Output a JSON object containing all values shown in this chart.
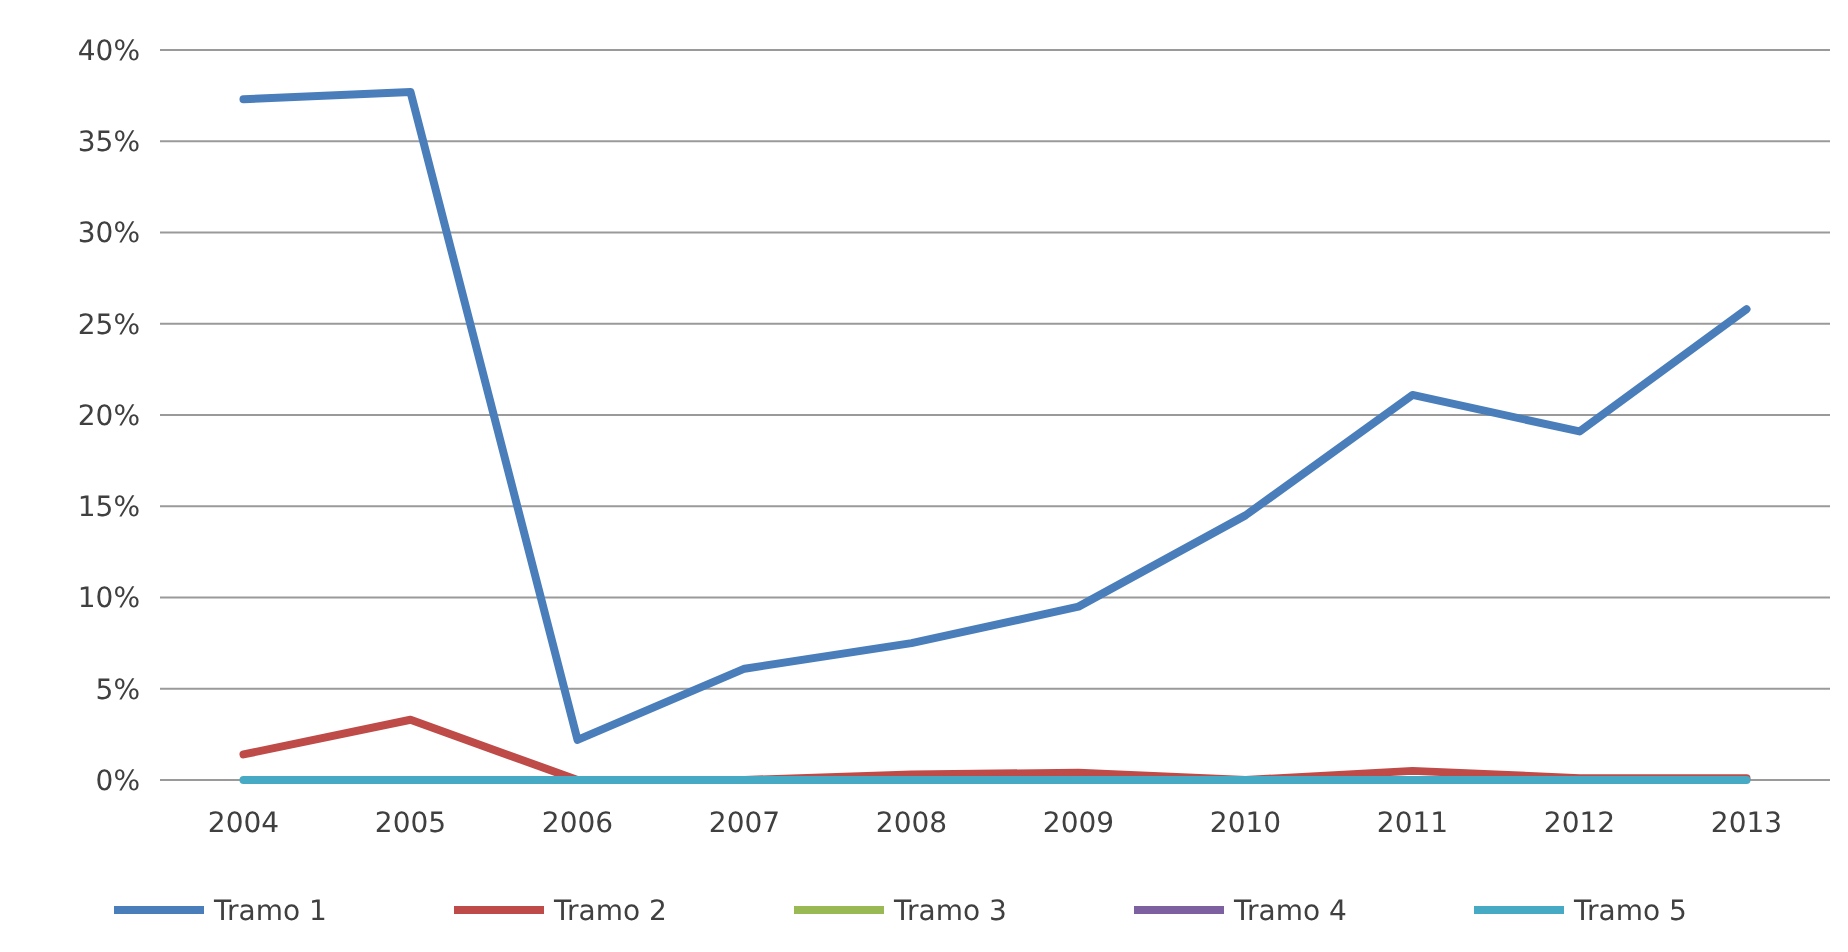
{
  "chart_data": {
    "type": "line",
    "categories": [
      "2004",
      "2005",
      "2006",
      "2007",
      "2008",
      "2009",
      "2010",
      "2011",
      "2012",
      "2013"
    ],
    "series": [
      {
        "name": "Tramo 1",
        "color": "#4a7ebb",
        "values": [
          37.3,
          37.7,
          2.2,
          6.1,
          7.5,
          9.5,
          14.5,
          21.1,
          19.1,
          25.8
        ]
      },
      {
        "name": "Tramo 2",
        "color": "#be4b48",
        "values": [
          1.4,
          3.3,
          0,
          0,
          0.3,
          0.4,
          0,
          0.5,
          0.1,
          0.1
        ]
      },
      {
        "name": "Tramo 3",
        "color": "#98b954",
        "values": [
          null,
          null,
          null,
          null,
          null,
          null,
          null,
          null,
          null,
          null
        ]
      },
      {
        "name": "Tramo 4",
        "color": "#7d60a0",
        "values": [
          null,
          null,
          null,
          null,
          null,
          null,
          null,
          null,
          null,
          null
        ]
      },
      {
        "name": "Tramo 5",
        "color": "#46aac5",
        "values": [
          0,
          0,
          0,
          0,
          0,
          0,
          0,
          0,
          0,
          0
        ]
      }
    ],
    "ylim": [
      0,
      40
    ],
    "yticks": [
      {
        "value": 0,
        "label": "0%"
      },
      {
        "value": 5,
        "label": "5%"
      },
      {
        "value": 10,
        "label": "10%"
      },
      {
        "value": 15,
        "label": "15%"
      },
      {
        "value": 20,
        "label": "20%"
      },
      {
        "value": 25,
        "label": "25%"
      },
      {
        "value": 30,
        "label": "30%"
      },
      {
        "value": 35,
        "label": "35%"
      },
      {
        "value": 40,
        "label": "40%"
      }
    ],
    "grid": "y",
    "legend": "bottom",
    "marker": "none",
    "line_style": "solid"
  }
}
